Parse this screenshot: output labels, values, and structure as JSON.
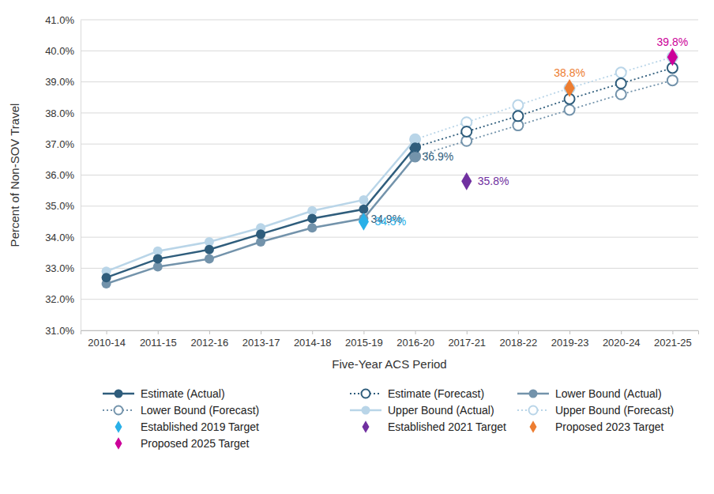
{
  "chart_data": {
    "type": "line",
    "x_label": "Five-Year ACS Period",
    "y_label": "Percent of Non-SOV Travel",
    "categories": [
      "2010-14",
      "2011-15",
      "2012-16",
      "2013-17",
      "2014-18",
      "2015-19",
      "2016-20",
      "2017-21",
      "2018-22",
      "2019-23",
      "2020-24",
      "2021-25"
    ],
    "ylim": [
      31,
      41
    ],
    "yticks": [
      {
        "value": 31,
        "label": "31.0%"
      },
      {
        "value": 32,
        "label": "32.0%"
      },
      {
        "value": 33,
        "label": "33.0%"
      },
      {
        "value": 34,
        "label": "34.0%"
      },
      {
        "value": 35,
        "label": "35.0%"
      },
      {
        "value": 36,
        "label": "36.0%"
      },
      {
        "value": 37,
        "label": "37.0%"
      },
      {
        "value": 38,
        "label": "38.0%"
      },
      {
        "value": 39,
        "label": "39.0%"
      },
      {
        "value": 40,
        "label": "40.0%"
      },
      {
        "value": 41,
        "label": "41.0%"
      }
    ],
    "grid": true,
    "legend": "bottom",
    "series": [
      {
        "name": "Estimate (Actual)",
        "type": "line",
        "color": "#2f5d7c",
        "marker": "circle",
        "line_style": "solid",
        "values": [
          32.7,
          33.3,
          33.6,
          34.1,
          34.6,
          34.9,
          36.9,
          null,
          null,
          null,
          null,
          null
        ],
        "data_labels": true,
        "value_labels": [
          null,
          null,
          null,
          null,
          null,
          "34.9%",
          "36.9%",
          null,
          null,
          null,
          null,
          null
        ]
      },
      {
        "name": "Estimate (Forecast)",
        "type": "line",
        "color": "#2f5d7c",
        "marker": "open-circle",
        "line_style": "dotted",
        "values": [
          null,
          null,
          null,
          null,
          null,
          null,
          36.9,
          37.4,
          37.9,
          38.45,
          38.95,
          39.45
        ]
      },
      {
        "name": "Lower Bound (Actual)",
        "type": "line",
        "color": "#7393ab",
        "marker": "circle",
        "line_style": "solid",
        "values": [
          32.5,
          33.05,
          33.3,
          33.85,
          34.3,
          34.6,
          36.6,
          null,
          null,
          null,
          null,
          null
        ]
      },
      {
        "name": "Lower Bound (Forecast)",
        "type": "line",
        "color": "#7393ab",
        "marker": "open-circle",
        "line_style": "dotted",
        "values": [
          null,
          null,
          null,
          null,
          null,
          null,
          36.6,
          37.1,
          37.6,
          38.1,
          38.6,
          39.05
        ]
      },
      {
        "name": "Upper Bound (Actual)",
        "type": "line",
        "color": "#b9d5e8",
        "marker": "circle",
        "line_style": "solid",
        "values": [
          32.9,
          33.55,
          33.85,
          34.3,
          34.85,
          35.2,
          37.15,
          null,
          null,
          null,
          null,
          null
        ]
      },
      {
        "name": "Upper Bound (Forecast)",
        "type": "line",
        "color": "#b9d5e8",
        "marker": "open-circle",
        "line_style": "dotted",
        "values": [
          null,
          null,
          null,
          null,
          null,
          null,
          37.15,
          37.7,
          38.25,
          38.8,
          39.3,
          39.8
        ]
      },
      {
        "name": "Established 2019 Target",
        "type": "scatter",
        "color": "#29b0e8",
        "marker": "diamond",
        "values": [
          null,
          null,
          null,
          null,
          null,
          34.5,
          null,
          null,
          null,
          null,
          null,
          null
        ],
        "data_labels": true,
        "value_labels": [
          null,
          null,
          null,
          null,
          null,
          "34.5%",
          null,
          null,
          null,
          null,
          null,
          null
        ]
      },
      {
        "name": "Established 2021 Target",
        "type": "scatter",
        "color": "#7030a0",
        "marker": "diamond",
        "values": [
          null,
          null,
          null,
          null,
          null,
          null,
          null,
          35.8,
          null,
          null,
          null,
          null
        ],
        "data_labels": true,
        "value_labels": [
          null,
          null,
          null,
          null,
          null,
          null,
          null,
          "35.8%",
          null,
          null,
          null,
          null
        ]
      },
      {
        "name": "Proposed 2023 Target",
        "type": "scatter",
        "color": "#ed7d31",
        "marker": "diamond",
        "values": [
          null,
          null,
          null,
          null,
          null,
          null,
          null,
          null,
          null,
          38.8,
          null,
          null
        ],
        "data_labels": true,
        "value_labels": [
          null,
          null,
          null,
          null,
          null,
          null,
          null,
          null,
          null,
          "38.8%",
          null,
          null
        ]
      },
      {
        "name": "Proposed 2025 Target",
        "type": "scatter",
        "color": "#cc0099",
        "marker": "diamond",
        "values": [
          null,
          null,
          null,
          null,
          null,
          null,
          null,
          null,
          null,
          null,
          null,
          39.8
        ],
        "data_labels": true,
        "value_labels": [
          null,
          null,
          null,
          null,
          null,
          null,
          null,
          null,
          null,
          null,
          null,
          "39.8%"
        ]
      }
    ]
  }
}
